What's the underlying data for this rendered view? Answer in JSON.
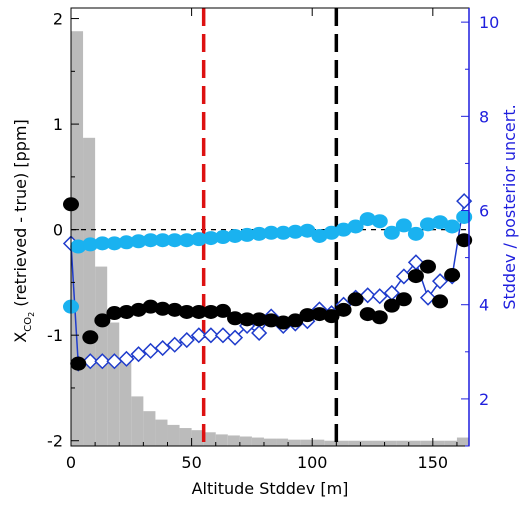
{
  "chart_data": {
    "type": "scatter",
    "xlabel": "Altitude Stddev [m]",
    "ylabel_left_main": "X",
    "ylabel_left_sub": "CO",
    "ylabel_left_sub2": "2",
    "ylabel_left_rest": " (retrieved - true) [ppm]",
    "ylabel_right": "Stddev / posterior uncert.",
    "xlim": [
      0,
      165
    ],
    "ylim_left": [
      -2.05,
      2.1
    ],
    "ylim_right": [
      1.0,
      10.3
    ],
    "x_ticks": [
      0,
      50,
      100,
      150
    ],
    "x_tick_labels": [
      "0",
      "50",
      "100",
      "150"
    ],
    "y_left_ticks": [
      -2,
      -1,
      0,
      1,
      2
    ],
    "y_left_tick_labels": [
      "-2",
      "-1",
      "0",
      "1",
      "2"
    ],
    "y_right_ticks": [
      2,
      4,
      6,
      8,
      10
    ],
    "y_right_tick_labels": [
      "2",
      "4",
      "6",
      "8",
      "10"
    ],
    "colors": {
      "histogram": "#bbbbbb",
      "black_series": "#000000",
      "cyan_series": "#1ab2f0",
      "blue_series": "#1f3ccc",
      "red_line": "#dd1111",
      "right_axis": "#1f1fdd"
    },
    "histogram": {
      "bin_width": 5,
      "left_edges": [
        0,
        5,
        10,
        15,
        20,
        25,
        30,
        35,
        40,
        45,
        50,
        55,
        60,
        65,
        70,
        75,
        80,
        85,
        90,
        95,
        100,
        105,
        110,
        115,
        120,
        125,
        130,
        135,
        140,
        145,
        150,
        155,
        160
      ],
      "values": [
        1.88,
        0.87,
        -0.35,
        -0.88,
        -1.23,
        -1.58,
        -1.72,
        -1.8,
        -1.85,
        -1.88,
        -1.9,
        -1.92,
        -1.94,
        -1.95,
        -1.96,
        -1.97,
        -1.98,
        -1.98,
        -1.99,
        -1.99,
        -1.99,
        -2.0,
        -2.0,
        -2.0,
        -2.0,
        -2.0,
        -2.0,
        -2.0,
        -2.0,
        -2.0,
        -2.0,
        -2.0,
        -1.97
      ]
    },
    "reference_lines": [
      {
        "axis": "y",
        "value": 0,
        "color": "#000000",
        "style": "dashed-fine"
      },
      {
        "axis": "x",
        "value": 55,
        "color": "#dd1111",
        "style": "dashed"
      },
      {
        "axis": "x",
        "value": 110,
        "color": "#000000",
        "style": "dashed"
      }
    ],
    "series": [
      {
        "marker": "filled-circle",
        "color": "#000000",
        "x": [
          0,
          3,
          8,
          13,
          18,
          23,
          28,
          33,
          38,
          43,
          48,
          53,
          58,
          63,
          68,
          73,
          78,
          83,
          88,
          93,
          98,
          103,
          108,
          113,
          118,
          123,
          128,
          133,
          138,
          143,
          148,
          153,
          158,
          163
        ],
        "y": [
          0.24,
          -1.27,
          -1.02,
          -0.86,
          -0.79,
          -0.78,
          -0.76,
          -0.73,
          -0.75,
          -0.76,
          -0.78,
          -0.78,
          -0.78,
          -0.77,
          -0.84,
          -0.85,
          -0.85,
          -0.86,
          -0.88,
          -0.86,
          -0.81,
          -0.8,
          -0.82,
          -0.76,
          -0.66,
          -0.8,
          -0.83,
          -0.72,
          -0.66,
          -0.44,
          -0.35,
          -0.68,
          -0.43,
          -0.1
        ]
      },
      {
        "marker": "filled-circle",
        "color": "#1ab2f0",
        "x": [
          0,
          3,
          8,
          13,
          18,
          23,
          28,
          33,
          38,
          43,
          48,
          53,
          58,
          63,
          68,
          73,
          78,
          83,
          88,
          93,
          98,
          103,
          108,
          113,
          118,
          123,
          128,
          133,
          138,
          143,
          148,
          153,
          158,
          163
        ],
        "y": [
          -0.73,
          -0.16,
          -0.14,
          -0.13,
          -0.13,
          -0.12,
          -0.11,
          -0.1,
          -0.1,
          -0.1,
          -0.1,
          -0.09,
          -0.08,
          -0.07,
          -0.06,
          -0.05,
          -0.04,
          -0.03,
          -0.03,
          -0.02,
          -0.01,
          -0.06,
          -0.03,
          0.0,
          0.03,
          0.1,
          0.08,
          -0.03,
          0.04,
          -0.04,
          0.05,
          0.07,
          0.03,
          0.12
        ]
      },
      {
        "marker": "open-diamond-line",
        "color": "#1f3ccc",
        "x": [
          0,
          3,
          8,
          13,
          18,
          23,
          28,
          33,
          38,
          43,
          48,
          53,
          58,
          63,
          68,
          73,
          78,
          83,
          88,
          93,
          98,
          103,
          108,
          113,
          118,
          123,
          128,
          133,
          138,
          143,
          148,
          153,
          158,
          163
        ],
        "y_right": [
          5.3,
          2.75,
          2.8,
          2.8,
          2.8,
          2.85,
          2.95,
          3.02,
          3.08,
          3.15,
          3.25,
          3.35,
          3.35,
          3.35,
          3.3,
          3.55,
          3.4,
          3.75,
          3.55,
          3.6,
          3.65,
          3.9,
          3.82,
          4.0,
          4.15,
          4.2,
          4.18,
          4.25,
          4.6,
          4.9,
          4.15,
          4.5,
          4.6,
          6.2
        ]
      }
    ]
  }
}
